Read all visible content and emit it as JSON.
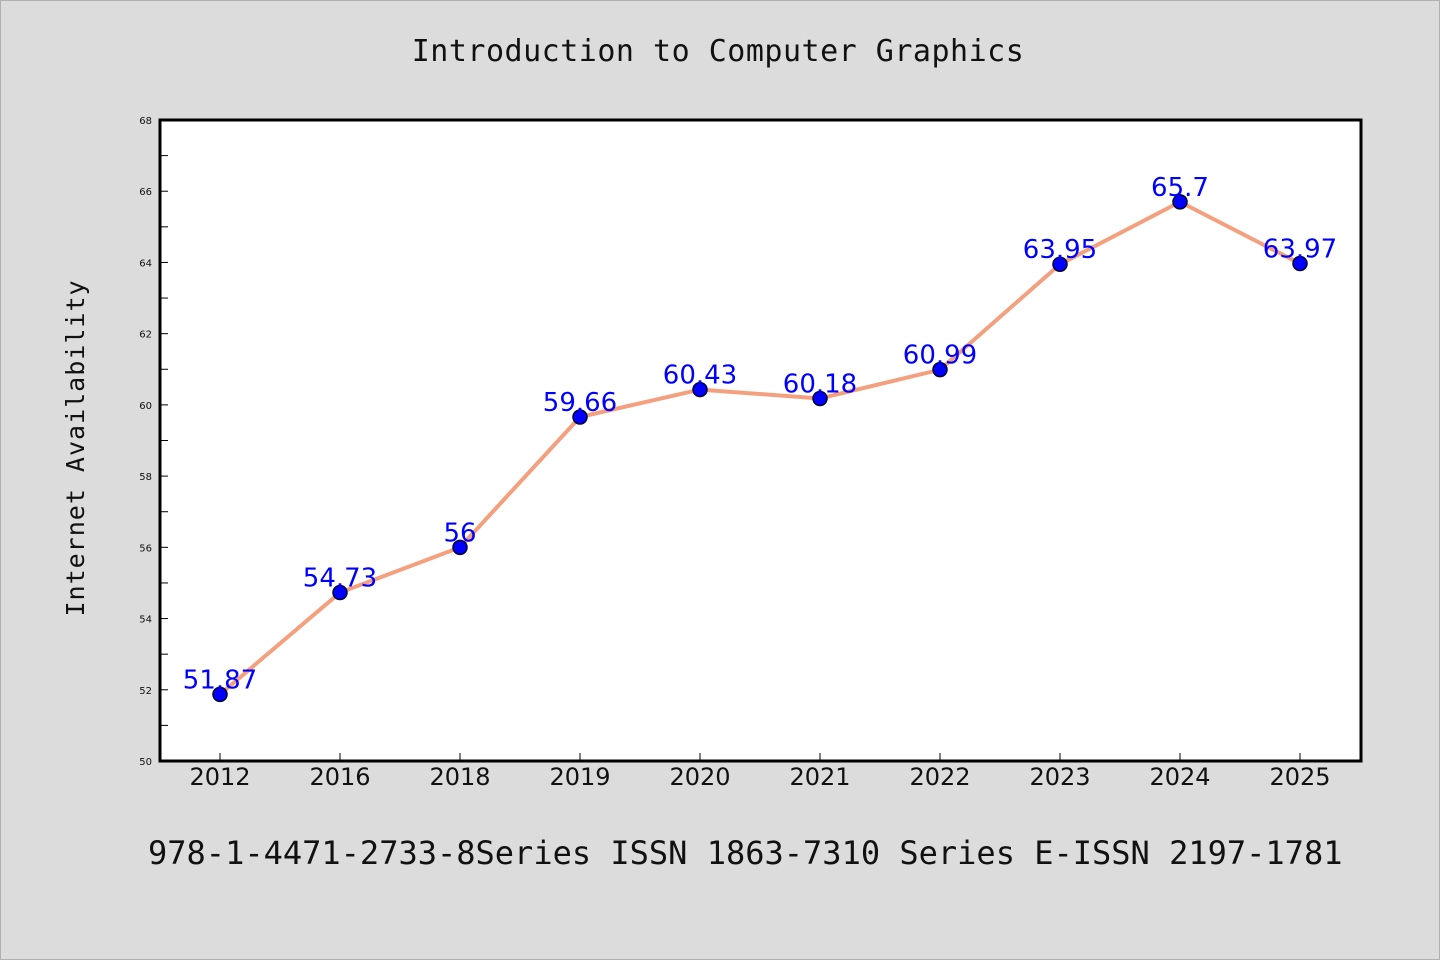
{
  "chart_data": {
    "type": "line",
    "title": "Introduction to Computer Graphics",
    "ylabel": "Internet Availability",
    "xlabel": "",
    "categories": [
      "2012",
      "2016",
      "2018",
      "2019",
      "2020",
      "2021",
      "2022",
      "2023",
      "2024",
      "2025"
    ],
    "series": [
      {
        "values": [
          51.87,
          54.73,
          56,
          59.66,
          60.43,
          60.18,
          60.99,
          63.95,
          65.7,
          63.97
        ],
        "labels": [
          "51.87",
          "54.73",
          "56",
          "59.66",
          "60.43",
          "60.18",
          "60.99",
          "63.95",
          "65.7",
          "63.97"
        ]
      }
    ],
    "ylim": [
      50,
      68
    ],
    "yticks": [
      50,
      52,
      54,
      56,
      58,
      60,
      62,
      64,
      66,
      68
    ],
    "grid": false,
    "colors": {
      "line": "#f4a07f",
      "marker": "#0000ff",
      "marker_edge": "#000033",
      "data_label": "#0000ff",
      "background": "#dcdcdc",
      "plot_background": "#ffffff"
    }
  },
  "footer": {
    "text": "978-1-4471-2733-8Series ISSN 1863-7310 Series E-ISSN 2197-1781"
  }
}
